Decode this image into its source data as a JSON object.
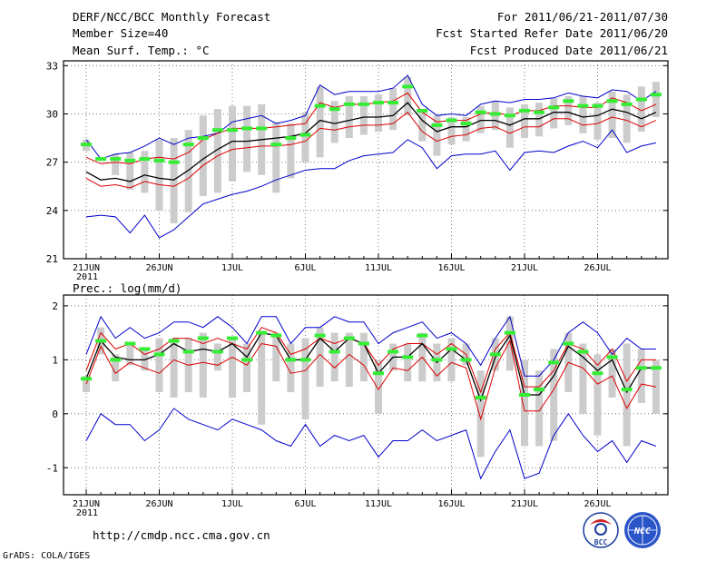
{
  "header": {
    "title": "DERF/NCC/BCC Monthly Forecast",
    "member_size": "Member Size=40",
    "variable": "Mean Surf. Temp.: °C",
    "period": "For 2011/06/21-2011/07/30",
    "refer_date": "Fcst Started Refer Date 2011/06/20",
    "produced_date": "Fcst Produced Date 2011/06/21"
  },
  "footer": {
    "url": "http://cmdp.ncc.cma.gov.cn",
    "grads_credit": "GrADS: COLA/IGES",
    "logo_bcc": "BCC",
    "logo_ncc": "NCC"
  },
  "colors": {
    "max_min": "#0000cc",
    "spread": "#dd0000",
    "mean": "#000000",
    "median": "#33ee33",
    "box": "#cccccc",
    "grid": "#777777"
  },
  "chart_data": [
    {
      "type": "line",
      "title": "Mean Surf. Temp.: °C",
      "ylim": [
        21,
        33.3
      ],
      "yticks": [
        21,
        24,
        27,
        30,
        33
      ],
      "x": [
        "6/21",
        "6/22",
        "6/23",
        "6/24",
        "6/25",
        "6/26",
        "6/27",
        "6/28",
        "6/29",
        "6/30",
        "7/1",
        "7/2",
        "7/3",
        "7/4",
        "7/5",
        "7/6",
        "7/7",
        "7/8",
        "7/9",
        "7/10",
        "7/11",
        "7/12",
        "7/13",
        "7/14",
        "7/15",
        "7/16",
        "7/17",
        "7/18",
        "7/19",
        "7/20",
        "7/21",
        "7/22",
        "7/23",
        "7/24",
        "7/25",
        "7/26",
        "7/27",
        "7/28",
        "7/29",
        "7/30"
      ],
      "xtick_labels": [
        {
          "i": 0,
          "label": "21JUN",
          "year": "2011"
        },
        {
          "i": 5,
          "label": "26JUN"
        },
        {
          "i": 10,
          "label": "1JUL"
        },
        {
          "i": 15,
          "label": "6JUL"
        },
        {
          "i": 20,
          "label": "11JUL"
        },
        {
          "i": 25,
          "label": "16JUL"
        },
        {
          "i": 30,
          "label": "21JUL"
        },
        {
          "i": 35,
          "label": "26JUL"
        }
      ],
      "series": [
        {
          "name": "max",
          "color": "#0000cc",
          "values": [
            28.4,
            27.2,
            27.5,
            27.6,
            28.0,
            28.5,
            28.1,
            28.5,
            28.6,
            28.8,
            29.5,
            29.7,
            29.9,
            29.4,
            29.6,
            29.9,
            31.8,
            31.2,
            31.4,
            31.4,
            31.4,
            31.6,
            32.4,
            30.6,
            29.9,
            30.0,
            29.9,
            30.6,
            30.8,
            30.7,
            30.9,
            30.9,
            31.0,
            31.3,
            31.1,
            31.0,
            31.5,
            31.4,
            30.8,
            31.4
          ]
        },
        {
          "name": "upper",
          "color": "#dd0000",
          "values": [
            27.3,
            26.9,
            27.0,
            26.9,
            27.2,
            27.3,
            27.2,
            27.6,
            28.4,
            28.8,
            29.1,
            29.1,
            29.1,
            29.2,
            29.3,
            29.4,
            30.7,
            30.4,
            30.6,
            30.6,
            30.7,
            30.8,
            31.3,
            30.1,
            29.5,
            29.6,
            29.6,
            30.0,
            30.1,
            29.9,
            30.2,
            30.2,
            30.5,
            30.5,
            30.4,
            30.4,
            31.0,
            30.7,
            30.2,
            30.6
          ]
        },
        {
          "name": "mean",
          "color": "#000000",
          "values": [
            26.4,
            25.9,
            26.0,
            25.8,
            26.2,
            26.0,
            25.9,
            26.5,
            27.2,
            27.8,
            28.3,
            28.3,
            28.4,
            28.5,
            28.6,
            28.8,
            29.6,
            29.4,
            29.6,
            29.8,
            29.8,
            29.9,
            30.7,
            29.6,
            28.9,
            29.2,
            29.2,
            29.6,
            29.6,
            29.3,
            29.7,
            29.7,
            30.1,
            30.1,
            29.8,
            29.9,
            30.3,
            30.1,
            29.7,
            30.1
          ]
        },
        {
          "name": "lower",
          "color": "#dd0000",
          "values": [
            26.0,
            25.5,
            25.6,
            25.4,
            25.8,
            25.6,
            25.5,
            26.0,
            26.8,
            27.4,
            27.8,
            27.9,
            28.0,
            28.0,
            28.1,
            28.3,
            29.1,
            29.0,
            29.2,
            29.3,
            29.3,
            29.4,
            30.1,
            28.9,
            28.3,
            28.6,
            28.7,
            29.1,
            29.2,
            28.8,
            29.2,
            29.2,
            29.7,
            29.7,
            29.3,
            29.4,
            29.8,
            29.6,
            29.2,
            29.6
          ]
        },
        {
          "name": "min",
          "color": "#0000cc",
          "values": [
            23.6,
            23.7,
            23.6,
            22.6,
            23.7,
            22.3,
            22.8,
            23.6,
            24.4,
            24.7,
            25.0,
            25.2,
            25.5,
            25.9,
            26.2,
            26.5,
            26.6,
            26.6,
            27.1,
            27.4,
            27.5,
            27.6,
            28.4,
            27.9,
            26.6,
            27.4,
            27.5,
            27.5,
            27.7,
            26.5,
            27.6,
            27.7,
            27.6,
            28.0,
            28.3,
            27.9,
            29.0,
            27.6,
            28.0,
            28.2
          ]
        },
        {
          "name": "median",
          "color": "#33ee33",
          "values": [
            28.1,
            27.2,
            27.2,
            27.1,
            27.2,
            27.1,
            27.0,
            28.1,
            28.5,
            29.0,
            29.0,
            29.1,
            29.1,
            28.1,
            28.5,
            28.7,
            30.5,
            30.3,
            30.6,
            30.6,
            30.7,
            30.7,
            31.7,
            30.2,
            29.3,
            29.6,
            29.4,
            30.1,
            30.0,
            29.9,
            30.2,
            30.1,
            30.4,
            30.8,
            30.5,
            30.5,
            30.8,
            30.6,
            30.9,
            31.2
          ]
        }
      ],
      "box": {
        "low": [
          27.7,
          27.2,
          26.2,
          25.3,
          25.1,
          24.0,
          23.2,
          23.9,
          24.9,
          25.1,
          25.8,
          26.4,
          26.2,
          25.1,
          26.0,
          27.0,
          27.3,
          28.2,
          28.5,
          28.7,
          28.9,
          29.0,
          29.9,
          28.3,
          27.4,
          28.1,
          28.3,
          28.8,
          29.0,
          27.9,
          28.5,
          28.6,
          29.1,
          29.3,
          28.8,
          28.4,
          28.5,
          28.2,
          28.9,
          29.8
        ],
        "high": [
          28.4,
          27.2,
          27.5,
          27.6,
          27.7,
          28.4,
          28.5,
          29.0,
          29.9,
          30.3,
          30.5,
          30.5,
          30.6,
          29.5,
          29.4,
          30.1,
          31.7,
          30.8,
          31.1,
          31.1,
          31.2,
          31.6,
          32.3,
          30.2,
          29.9,
          29.8,
          29.8,
          30.5,
          30.8,
          30.4,
          30.6,
          30.7,
          31.0,
          31.1,
          31.1,
          30.7,
          31.4,
          31.2,
          31.7,
          32.0
        ]
      }
    },
    {
      "type": "line",
      "title": "Prec.: log(mm/d)",
      "ylim": [
        -1.5,
        2.2
      ],
      "yticks": [
        -1,
        0,
        1,
        2
      ],
      "x": [
        "6/21",
        "6/22",
        "6/23",
        "6/24",
        "6/25",
        "6/26",
        "6/27",
        "6/28",
        "6/29",
        "6/30",
        "7/1",
        "7/2",
        "7/3",
        "7/4",
        "7/5",
        "7/6",
        "7/7",
        "7/8",
        "7/9",
        "7/10",
        "7/11",
        "7/12",
        "7/13",
        "7/14",
        "7/15",
        "7/16",
        "7/17",
        "7/18",
        "7/19",
        "7/20",
        "7/21",
        "7/22",
        "7/23",
        "7/24",
        "7/25",
        "7/26",
        "7/27",
        "7/28",
        "7/29",
        "7/30"
      ],
      "xtick_labels": [
        {
          "i": 0,
          "label": "21JUN",
          "year": "2011"
        },
        {
          "i": 5,
          "label": "26JUN"
        },
        {
          "i": 10,
          "label": "1JUL"
        },
        {
          "i": 15,
          "label": "6JUL"
        },
        {
          "i": 20,
          "label": "11JUL"
        },
        {
          "i": 25,
          "label": "16JUL"
        },
        {
          "i": 30,
          "label": "21JUL"
        },
        {
          "i": 35,
          "label": "26JUL"
        }
      ],
      "series": [
        {
          "name": "max",
          "color": "#0000cc",
          "values": [
            1.1,
            1.8,
            1.4,
            1.6,
            1.4,
            1.5,
            1.7,
            1.7,
            1.6,
            1.8,
            1.6,
            1.3,
            1.8,
            1.8,
            1.3,
            1.6,
            1.6,
            1.8,
            1.7,
            1.7,
            1.3,
            1.5,
            1.6,
            1.7,
            1.4,
            1.5,
            1.3,
            0.9,
            1.4,
            1.8,
            0.7,
            0.7,
            1.0,
            1.5,
            1.7,
            1.5,
            1.1,
            1.4,
            1.2,
            1.2
          ]
        },
        {
          "name": "upper",
          "color": "#dd0000",
          "values": [
            0.8,
            1.5,
            1.2,
            1.3,
            1.1,
            1.2,
            1.4,
            1.4,
            1.3,
            1.4,
            1.3,
            1.2,
            1.6,
            1.5,
            1.1,
            1.2,
            1.4,
            1.3,
            1.4,
            1.3,
            0.9,
            1.2,
            1.3,
            1.3,
            1.1,
            1.3,
            1.1,
            0.4,
            1.2,
            1.5,
            0.5,
            0.5,
            0.8,
            1.3,
            1.2,
            0.9,
            1.2,
            0.6,
            1.0,
            1.0
          ]
        },
        {
          "name": "mean",
          "color": "#000000",
          "values": [
            0.65,
            1.35,
            1.05,
            1.0,
            1.0,
            1.1,
            1.3,
            1.15,
            1.2,
            1.15,
            1.3,
            1.05,
            1.5,
            1.45,
            1.0,
            1.0,
            1.4,
            1.15,
            1.4,
            1.3,
            0.75,
            1.05,
            1.05,
            1.3,
            0.95,
            1.2,
            1.0,
            0.25,
            1.05,
            1.45,
            0.35,
            0.35,
            0.7,
            1.25,
            1.05,
            0.8,
            1.0,
            0.4,
            0.85,
            0.85
          ]
        },
        {
          "name": "lower",
          "color": "#dd0000",
          "values": [
            0.55,
            1.25,
            0.75,
            0.95,
            0.85,
            0.75,
            1.0,
            0.9,
            0.95,
            0.9,
            1.05,
            0.9,
            1.3,
            1.25,
            0.75,
            0.8,
            1.1,
            0.85,
            1.1,
            0.9,
            0.45,
            0.85,
            0.8,
            1.05,
            0.7,
            0.95,
            0.85,
            -0.1,
            0.85,
            1.35,
            0.05,
            0.05,
            0.45,
            0.95,
            0.85,
            0.55,
            0.7,
            0.1,
            0.55,
            0.5
          ]
        },
        {
          "name": "min",
          "color": "#0000cc",
          "values": [
            -0.5,
            0.0,
            -0.2,
            -0.2,
            -0.5,
            -0.3,
            0.1,
            -0.1,
            -0.2,
            -0.3,
            -0.1,
            -0.2,
            -0.3,
            -0.5,
            -0.6,
            -0.2,
            -0.6,
            -0.4,
            -0.5,
            -0.4,
            -0.8,
            -0.5,
            -0.5,
            -0.3,
            -0.5,
            -0.4,
            -0.3,
            -1.2,
            -0.7,
            -0.3,
            -1.2,
            -1.1,
            -0.4,
            0.0,
            -0.4,
            -0.7,
            -0.5,
            -0.9,
            -0.5,
            -0.6
          ]
        },
        {
          "name": "median",
          "color": "#33ee33",
          "values": [
            0.65,
            1.35,
            1.0,
            1.3,
            1.2,
            1.1,
            1.35,
            1.15,
            1.4,
            1.15,
            1.4,
            1.0,
            1.5,
            1.45,
            1.0,
            1.0,
            1.45,
            1.15,
            1.4,
            1.3,
            0.75,
            1.15,
            1.05,
            1.45,
            1.0,
            1.2,
            1.0,
            0.3,
            1.1,
            1.5,
            0.35,
            0.45,
            0.95,
            1.3,
            1.15,
            0.75,
            1.05,
            0.45,
            0.85,
            0.85
          ]
        }
      ],
      "box": {
        "low": [
          0.4,
          1.1,
          0.6,
          0.9,
          0.8,
          0.4,
          0.3,
          0.4,
          0.3,
          0.8,
          0.3,
          0.4,
          -0.2,
          0.6,
          0.4,
          -0.1,
          0.5,
          0.6,
          0.5,
          0.6,
          0.0,
          0.8,
          0.6,
          0.6,
          0.6,
          0.6,
          0.9,
          -0.8,
          0.8,
          0.8,
          -0.6,
          -0.6,
          -0.5,
          0.4,
          0.0,
          -0.4,
          0.3,
          -0.6,
          0.2,
          0.0
        ],
        "high": [
          0.7,
          1.6,
          1.1,
          1.3,
          1.2,
          1.4,
          1.4,
          1.4,
          1.5,
          1.3,
          1.4,
          1.3,
          1.5,
          1.5,
          1.3,
          1.4,
          1.6,
          1.5,
          1.5,
          1.5,
          1.0,
          1.3,
          1.3,
          1.5,
          1.3,
          1.4,
          1.3,
          0.8,
          1.4,
          1.8,
          1.0,
          0.8,
          1.2,
          1.5,
          1.3,
          1.1,
          1.2,
          1.3,
          1.2,
          1.0
        ]
      }
    }
  ]
}
